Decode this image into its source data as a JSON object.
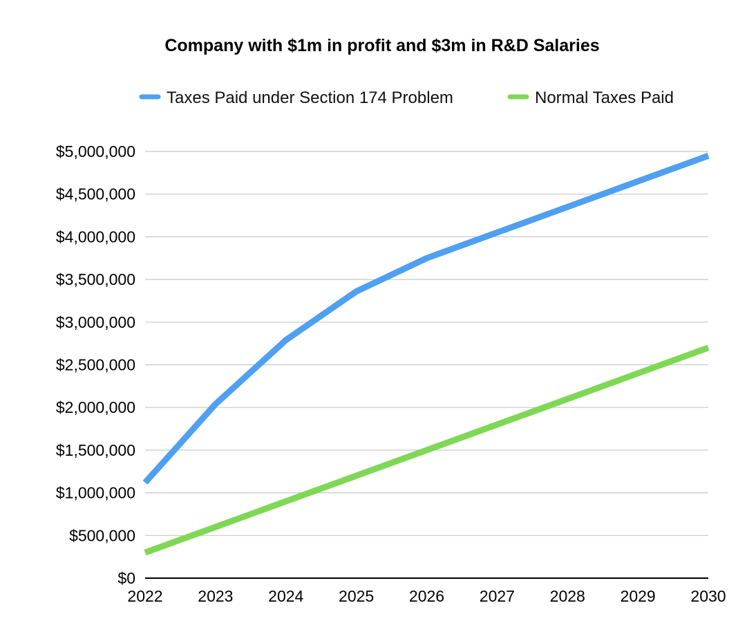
{
  "chart_data": {
    "type": "line",
    "title": "Company with $1m in profit and $3m in R&D Salaries",
    "xlabel": "",
    "ylabel": "",
    "x": [
      "2022",
      "2023",
      "2024",
      "2025",
      "2026",
      "2027",
      "2028",
      "2029",
      "2030"
    ],
    "ylim": [
      0,
      5000000
    ],
    "yticks": [
      0,
      500000,
      1000000,
      1500000,
      2000000,
      2500000,
      3000000,
      3500000,
      4000000,
      4500000,
      5000000
    ],
    "ytick_labels": [
      "$0",
      "$500,000",
      "$1,000,000",
      "$1,500,000",
      "$2,000,000",
      "$2,500,000",
      "$3,000,000",
      "$3,500,000",
      "$4,000,000",
      "$4,500,000",
      "$5,000,000"
    ],
    "grid": true,
    "legend_position": "top",
    "series": [
      {
        "name": "Taxes Paid under Section 174 Problem",
        "color": "#4fa0f0",
        "values": [
          1120000,
          2040000,
          2790000,
          3360000,
          3750000,
          4050000,
          4350000,
          4650000,
          4950000
        ]
      },
      {
        "name": "Normal Taxes Paid",
        "color": "#7fd855",
        "values": [
          300000,
          600000,
          900000,
          1200000,
          1500000,
          1800000,
          2100000,
          2400000,
          2700000
        ]
      }
    ]
  }
}
